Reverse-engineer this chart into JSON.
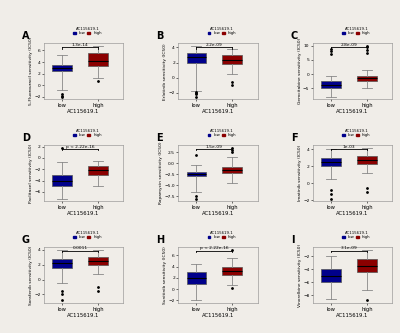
{
  "panels": [
    {
      "label": "A",
      "ylabel": "5-Fluorouracil sensitivity (IC50)",
      "pval": "1.3e-14",
      "low": {
        "q1": 2.5,
        "median": 3.0,
        "q3": 3.5,
        "whislo": -0.8,
        "whishi": 5.2,
        "fliers": [
          -1.5,
          -1.8,
          -2.0
        ]
      },
      "high": {
        "q1": 3.3,
        "median": 4.2,
        "q3": 5.5,
        "whislo": 1.2,
        "whishi": 6.8,
        "fliers": [
          0.8
        ]
      }
    },
    {
      "label": "B",
      "ylabel": "Erlotinib sensitivity (IC50)",
      "pval": "2.2e-09",
      "low": {
        "q1": 2.0,
        "median": 2.7,
        "q3": 3.2,
        "whislo": -1.8,
        "whishi": 4.2,
        "fliers": [
          -2.5,
          -2.2,
          -2.0,
          -1.9
        ]
      },
      "high": {
        "q1": 1.8,
        "median": 2.4,
        "q3": 3.0,
        "whislo": 0.5,
        "whishi": 3.8,
        "fliers": [
          -0.6,
          -0.9
        ]
      }
    },
    {
      "label": "C",
      "ylabel": "Gemcitabine sensitivity (IC50)",
      "pval": "2.8e-09",
      "low": {
        "q1": -5.0,
        "median": -4.0,
        "q3": -2.5,
        "whislo": -8.0,
        "whishi": -0.5,
        "fliers": [
          7.0,
          8.0,
          9.0
        ]
      },
      "high": {
        "q1": -2.5,
        "median": -1.5,
        "q3": -0.5,
        "whislo": -5.0,
        "whishi": 1.5,
        "fliers": [
          7.5,
          8.5,
          9.5,
          10.0
        ]
      }
    },
    {
      "label": "D",
      "ylabel": "Paclitaxel sensitivity (IC50)",
      "pval": "p < 2.22e-16",
      "low": {
        "q1": -5.0,
        "median": -4.0,
        "q3": -3.0,
        "whislo": -7.2,
        "whishi": -0.8,
        "fliers": [
          1.8
        ]
      },
      "high": {
        "q1": -3.0,
        "median": -2.2,
        "q3": -1.5,
        "whislo": -5.0,
        "whishi": -0.5,
        "fliers": []
      }
    },
    {
      "label": "E",
      "ylabel": "Rapamycin sensitivity (IC50)",
      "pval": "1.5e-09",
      "low": {
        "q1": -3.0,
        "median": -2.5,
        "q3": -2.0,
        "whislo": -6.5,
        "whishi": -0.5,
        "fliers": [
          -7.5,
          -8.0,
          1.8
        ]
      },
      "high": {
        "q1": -2.2,
        "median": -1.5,
        "q3": -0.8,
        "whislo": -4.5,
        "whishi": 1.5,
        "fliers": [
          2.5,
          3.0,
          3.5
        ]
      }
    },
    {
      "label": "F",
      "ylabel": "Imatinib sensitivity (IC50)",
      "pval": "1e-03",
      "low": {
        "q1": 2.0,
        "median": 2.5,
        "q3": 3.0,
        "whislo": 0.5,
        "whishi": 4.0,
        "fliers": [
          -0.8,
          -1.2,
          -1.8
        ]
      },
      "high": {
        "q1": 2.3,
        "median": 2.8,
        "q3": 3.2,
        "whislo": 1.2,
        "whishi": 4.2,
        "fliers": [
          -0.5,
          -1.0
        ]
      }
    },
    {
      "label": "G",
      "ylabel": "Sorafenib sensitivity (IC50)",
      "pval": "0.0011",
      "low": {
        "q1": 1.5,
        "median": 2.2,
        "q3": 2.8,
        "whislo": -0.5,
        "whishi": 4.0,
        "fliers": [
          -1.5,
          -2.0,
          -2.8
        ]
      },
      "high": {
        "q1": 2.0,
        "median": 2.5,
        "q3": 3.0,
        "whislo": 0.8,
        "whishi": 4.0,
        "fliers": [
          -1.0,
          -1.5
        ]
      }
    },
    {
      "label": "H",
      "ylabel": "Sunitinib sensitivity (IC50)",
      "pval": "p < 2.22e-16",
      "low": {
        "q1": 1.0,
        "median": 2.0,
        "q3": 3.0,
        "whislo": -2.0,
        "whishi": 4.5,
        "fliers": []
      },
      "high": {
        "q1": 2.5,
        "median": 3.2,
        "q3": 4.0,
        "whislo": 0.8,
        "whishi": 5.5,
        "fliers": [
          0.2,
          7.0
        ]
      }
    },
    {
      "label": "I",
      "ylabel": "Vinorelbine sensitivity (IC50)",
      "pval": "3.1e-09",
      "low": {
        "q1": -6.0,
        "median": -5.0,
        "q3": -4.0,
        "whislo": -8.5,
        "whishi": -2.0,
        "fliers": []
      },
      "high": {
        "q1": -4.5,
        "median": -3.5,
        "q3": -2.5,
        "whislo": -7.2,
        "whishi": -1.0,
        "fliers": [
          -8.8
        ]
      }
    }
  ],
  "color_low": "#00008B",
  "color_high": "#8B0000",
  "xlabel": "AC115619.1",
  "legend_label_low": "low",
  "legend_label_high": "high",
  "legend_title": "AC115619.1",
  "bg_color": "#f0ede8"
}
